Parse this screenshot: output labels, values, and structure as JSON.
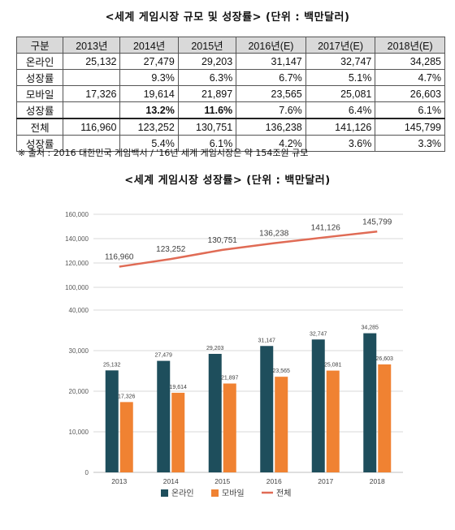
{
  "table_title": "<세계 게임시장 규모 및 성장률> (단위 : 백만달러)",
  "table": {
    "headers": [
      "구분",
      "2013년",
      "2014년",
      "2015년",
      "2016년(E)",
      "2017년(E)",
      "2018년(E)"
    ],
    "rows": [
      {
        "label": "온라인",
        "cells": [
          "25,132",
          "27,479",
          "29,203",
          "31,147",
          "32,747",
          "34,285"
        ]
      },
      {
        "label": "성장률",
        "cells": [
          "",
          "9.3%",
          "6.3%",
          "6.7%",
          "5.1%",
          "4.7%"
        ]
      },
      {
        "label": "모바일",
        "cells": [
          "17,326",
          "19,614",
          "21,897",
          "23,565",
          "25,081",
          "26,603"
        ]
      },
      {
        "label": "성장률",
        "cells": [
          "",
          "13.2%",
          "11.6%",
          "7.6%",
          "6.4%",
          "6.1%"
        ]
      },
      {
        "label": "전체",
        "cells": [
          "116,960",
          "123,252",
          "130,751",
          "136,238",
          "141,126",
          "145,799"
        ]
      },
      {
        "label": "성장률",
        "cells": [
          "",
          "5.4%",
          "6.1%",
          "4.2%",
          "3.6%",
          "3.3%"
        ]
      }
    ]
  },
  "source_note": "※ 출처 : 2016 대한민국 게임백서 / '16년 세계 게임시장은 약 154조원 규모",
  "chart_title": "<세계 게임시장 성장률> (단위 : 백만달러)",
  "colors": {
    "online": "#1e4e5c",
    "mobile": "#f08232",
    "total": "#e06b55",
    "grid": "#d9d9d9"
  },
  "chart_data": {
    "type": "bar",
    "categories": [
      "2013",
      "2014",
      "2015",
      "2016",
      "2017",
      "2018"
    ],
    "series": [
      {
        "name": "온라인",
        "type": "bar",
        "values": [
          25132,
          27479,
          29203,
          31147,
          32747,
          34285
        ],
        "labels": [
          "25,132",
          "27,479",
          "29,203",
          "31,147",
          "32,747",
          "34,285"
        ]
      },
      {
        "name": "모바일",
        "type": "bar",
        "values": [
          17326,
          19614,
          21897,
          23565,
          25081,
          26603
        ],
        "labels": [
          "17,326",
          "19,614",
          "21,897",
          "23,565",
          "25,081",
          "26,603"
        ]
      },
      {
        "name": "전체",
        "type": "line",
        "values": [
          116960,
          123252,
          130751,
          136238,
          141126,
          145799
        ],
        "labels": [
          "116,960",
          "123,252",
          "130,751",
          "136,238",
          "141,126",
          "145,799"
        ]
      }
    ],
    "y_ticks_upper": [
      "100,000",
      "120,000",
      "140,000",
      "160,000"
    ],
    "y_ticks_lower": [
      "0",
      "10,000",
      "20,000",
      "30,000",
      "40,000"
    ],
    "ylim_upper": [
      100000,
      160000
    ],
    "ylim_lower": [
      0,
      40000
    ],
    "grid": true,
    "legend": "bottom"
  }
}
